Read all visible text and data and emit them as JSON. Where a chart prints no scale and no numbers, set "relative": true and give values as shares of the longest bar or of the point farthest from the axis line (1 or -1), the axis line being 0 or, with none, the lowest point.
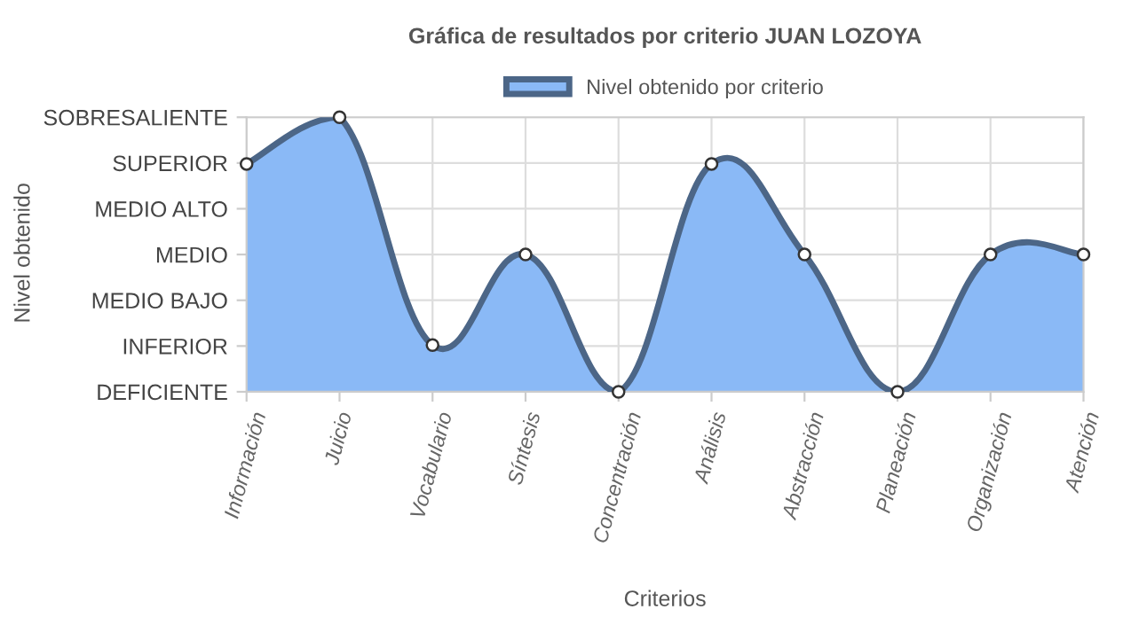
{
  "chart_data": {
    "type": "area",
    "title": "Gráfica de resultados por criterio JUAN LOZOYA",
    "xlabel": "Criterios",
    "annotations": [
      "Nivel obtenido"
    ],
    "categories": [
      "Información",
      "Juicio",
      "Vocabulario",
      "Síntesis",
      "Concentración",
      "Análisis",
      "Abstracción",
      "Planeación",
      "Organización",
      "Atención"
    ],
    "y_categories": [
      "SOBRESALIENTE",
      "SUPERIOR",
      "MEDIO ALTO",
      "MEDIO",
      "MEDIO BAJO",
      "INFERIOR",
      "DEFICIENTE"
    ],
    "relative": true,
    "series": [
      {
        "name": "Nivel obtenido por criterio",
        "color": "#8ab9f6",
        "values": [
          0.83,
          1,
          0.17,
          0.5,
          0,
          0.83,
          0.5,
          0,
          0.5,
          0.5
        ]
      }
    ],
    "grid": true,
    "legend": "top",
    "marker": "circle",
    "line_style": "solid"
  }
}
